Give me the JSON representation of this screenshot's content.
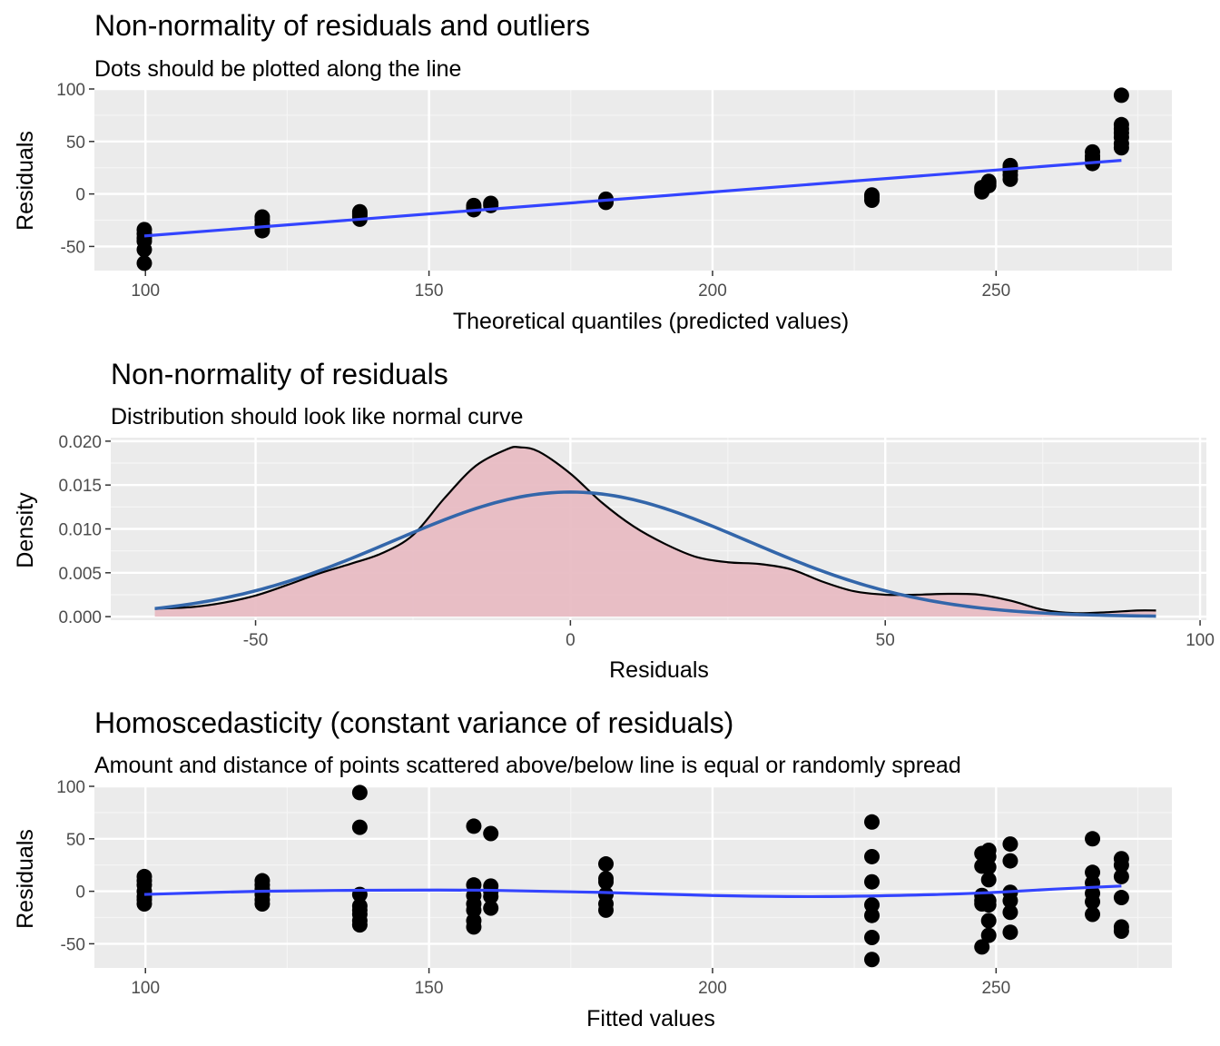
{
  "chart_data": [
    {
      "type": "scatter",
      "title": "Non-normality of residuals and outliers",
      "subtitle": "Dots should be plotted along the line",
      "xlabel": "Theoretical quantiles (predicted values)",
      "ylabel": "Residuals",
      "xlim": [
        91,
        281
      ],
      "ylim": [
        -73,
        100
      ],
      "x_ticks": [
        100,
        150,
        200,
        250
      ],
      "y_ticks": [
        -50,
        0,
        50,
        100
      ],
      "x_tick_labels": [
        "100",
        "150",
        "200",
        "250"
      ],
      "y_tick_labels": [
        "-50",
        "0",
        "50",
        "100"
      ],
      "grid": true,
      "points": [
        [
          99.8,
          -34
        ],
        [
          99.8,
          -38
        ],
        [
          99.8,
          -42
        ],
        [
          99.8,
          -45
        ],
        [
          99.8,
          -53
        ],
        [
          99.8,
          -66
        ],
        [
          120.6,
          -22
        ],
        [
          120.6,
          -25
        ],
        [
          120.6,
          -29
        ],
        [
          120.6,
          -32
        ],
        [
          120.6,
          -35
        ],
        [
          137.8,
          -17
        ],
        [
          137.8,
          -19
        ],
        [
          137.8,
          -21
        ],
        [
          137.8,
          -24
        ],
        [
          157.9,
          -11
        ],
        [
          157.9,
          -13
        ],
        [
          157.9,
          -15
        ],
        [
          160.9,
          -9
        ],
        [
          160.9,
          -11
        ],
        [
          181.2,
          -5
        ],
        [
          181.2,
          -6
        ],
        [
          181.2,
          -8
        ],
        [
          228.1,
          -1
        ],
        [
          228.1,
          -3
        ],
        [
          228.1,
          -6
        ],
        [
          247.5,
          2
        ],
        [
          247.5,
          4
        ],
        [
          247.5,
          6
        ],
        [
          248.7,
          8
        ],
        [
          248.7,
          10
        ],
        [
          248.7,
          12
        ],
        [
          252.5,
          14
        ],
        [
          252.5,
          18
        ],
        [
          252.5,
          22
        ],
        [
          252.5,
          25
        ],
        [
          252.5,
          27
        ],
        [
          267.0,
          29
        ],
        [
          267.0,
          33
        ],
        [
          267.0,
          36
        ],
        [
          267.0,
          40
        ],
        [
          272.1,
          44
        ],
        [
          272.1,
          48
        ],
        [
          272.1,
          54
        ],
        [
          272.1,
          58
        ],
        [
          272.1,
          62
        ],
        [
          272.1,
          66
        ],
        [
          272.1,
          94
        ]
      ],
      "line": {
        "x": [
          99.8,
          272.1
        ],
        "y": [
          -40,
          32
        ],
        "color": "#3344ff"
      },
      "point_color": "#000000"
    },
    {
      "type": "area",
      "title": "Non-normality of residuals",
      "subtitle": "Distribution should look like normal curve",
      "xlabel": "Residuals",
      "ylabel": "Density",
      "xlim": [
        -73,
        101
      ],
      "ylim": [
        -0.0004,
        0.0204
      ],
      "x_ticks": [
        -50,
        0,
        50,
        100
      ],
      "y_ticks": [
        0,
        0.005,
        0.01,
        0.015,
        0.02
      ],
      "x_tick_labels": [
        "-50",
        "0",
        "50",
        "100"
      ],
      "y_tick_labels": [
        "0.000",
        "0.005",
        "0.010",
        "0.015",
        "0.020"
      ],
      "grid": true,
      "density": {
        "x": [
          -66,
          -60,
          -55,
          -50,
          -45,
          -40,
          -35,
          -30,
          -25,
          -20,
          -15,
          -10,
          -8,
          -5,
          0,
          5,
          10,
          15,
          20,
          25,
          30,
          35,
          40,
          45,
          50,
          55,
          60,
          65,
          70,
          75,
          80,
          85,
          90,
          93
        ],
        "y": [
          0.0009,
          0.0011,
          0.0016,
          0.0024,
          0.0036,
          0.0049,
          0.006,
          0.0072,
          0.0093,
          0.0135,
          0.0172,
          0.0191,
          0.0193,
          0.0188,
          0.0163,
          0.013,
          0.0103,
          0.0083,
          0.0068,
          0.0062,
          0.006,
          0.0054,
          0.004,
          0.0029,
          0.0025,
          0.0025,
          0.0026,
          0.0025,
          0.0018,
          0.0008,
          0.0004,
          0.0005,
          0.0007,
          0.0007
        ],
        "fill": "#e8bcc3",
        "stroke": "#000000"
      },
      "normal_curve": {
        "mean": 0,
        "sd": 28.2,
        "peak": 0.0142,
        "x_range": [
          -66,
          93
        ],
        "color": "#3366aa"
      }
    },
    {
      "type": "scatter",
      "title": "Homoscedasticity (constant variance of residuals)",
      "subtitle": "Amount and distance of points scattered above/below line is equal or randomly spread",
      "xlabel": "Fitted values",
      "ylabel": "Residuals",
      "xlim": [
        91,
        281
      ],
      "ylim": [
        -73,
        100
      ],
      "x_ticks": [
        100,
        150,
        200,
        250
      ],
      "y_ticks": [
        -50,
        0,
        50,
        100
      ],
      "x_tick_labels": [
        "100",
        "150",
        "200",
        "250"
      ],
      "y_tick_labels": [
        "-50",
        "0",
        "50",
        "100"
      ],
      "grid": true,
      "points": [
        [
          99.8,
          14
        ],
        [
          99.8,
          10
        ],
        [
          99.8,
          6
        ],
        [
          99.8,
          0
        ],
        [
          99.8,
          -5
        ],
        [
          99.8,
          -8
        ],
        [
          99.8,
          -12
        ],
        [
          120.6,
          10
        ],
        [
          120.6,
          6
        ],
        [
          120.6,
          2
        ],
        [
          120.6,
          -3
        ],
        [
          120.6,
          -8
        ],
        [
          120.6,
          -12
        ],
        [
          137.8,
          94
        ],
        [
          137.8,
          61
        ],
        [
          137.8,
          -3
        ],
        [
          137.8,
          -14
        ],
        [
          137.8,
          -18
        ],
        [
          137.8,
          -22
        ],
        [
          137.8,
          -28
        ],
        [
          137.8,
          -32
        ],
        [
          157.9,
          62
        ],
        [
          157.9,
          6
        ],
        [
          157.9,
          -4
        ],
        [
          157.9,
          -12
        ],
        [
          157.9,
          -18
        ],
        [
          157.9,
          -28
        ],
        [
          157.9,
          -34
        ],
        [
          160.9,
          55
        ],
        [
          160.9,
          5
        ],
        [
          160.9,
          0
        ],
        [
          160.9,
          -5
        ],
        [
          160.9,
          -16
        ],
        [
          181.2,
          26
        ],
        [
          181.2,
          12
        ],
        [
          181.2,
          9
        ],
        [
          181.2,
          -3
        ],
        [
          181.2,
          -12
        ],
        [
          181.2,
          -18
        ],
        [
          228.1,
          66
        ],
        [
          228.1,
          33
        ],
        [
          228.1,
          9
        ],
        [
          228.1,
          -13
        ],
        [
          228.1,
          -23
        ],
        [
          228.1,
          -44
        ],
        [
          228.1,
          -65
        ],
        [
          247.5,
          36
        ],
        [
          247.5,
          24
        ],
        [
          247.5,
          -4
        ],
        [
          247.5,
          -9
        ],
        [
          247.5,
          -12
        ],
        [
          247.5,
          -53
        ],
        [
          248.7,
          39
        ],
        [
          248.7,
          33
        ],
        [
          248.7,
          23
        ],
        [
          248.7,
          11
        ],
        [
          248.7,
          -9
        ],
        [
          248.7,
          -13
        ],
        [
          248.7,
          -28
        ],
        [
          248.7,
          -42
        ],
        [
          252.5,
          45
        ],
        [
          252.5,
          29
        ],
        [
          252.5,
          -1
        ],
        [
          252.5,
          -9
        ],
        [
          252.5,
          -20
        ],
        [
          252.5,
          -39
        ],
        [
          267.0,
          50
        ],
        [
          267.0,
          18
        ],
        [
          267.0,
          8
        ],
        [
          267.0,
          -2
        ],
        [
          267.0,
          -10
        ],
        [
          267.0,
          -22
        ],
        [
          272.1,
          31
        ],
        [
          272.1,
          25
        ],
        [
          272.1,
          14
        ],
        [
          272.1,
          -6
        ],
        [
          272.1,
          -34
        ],
        [
          272.1,
          -38
        ]
      ],
      "line": {
        "x": [
          99.8,
          120,
          140,
          160,
          180,
          200,
          220,
          240,
          250,
          260,
          272.1
        ],
        "y": [
          -3,
          0,
          1,
          1,
          -1,
          -4,
          -5,
          -3,
          -1,
          2,
          5
        ],
        "color": "#3344ff"
      },
      "point_color": "#000000"
    }
  ]
}
